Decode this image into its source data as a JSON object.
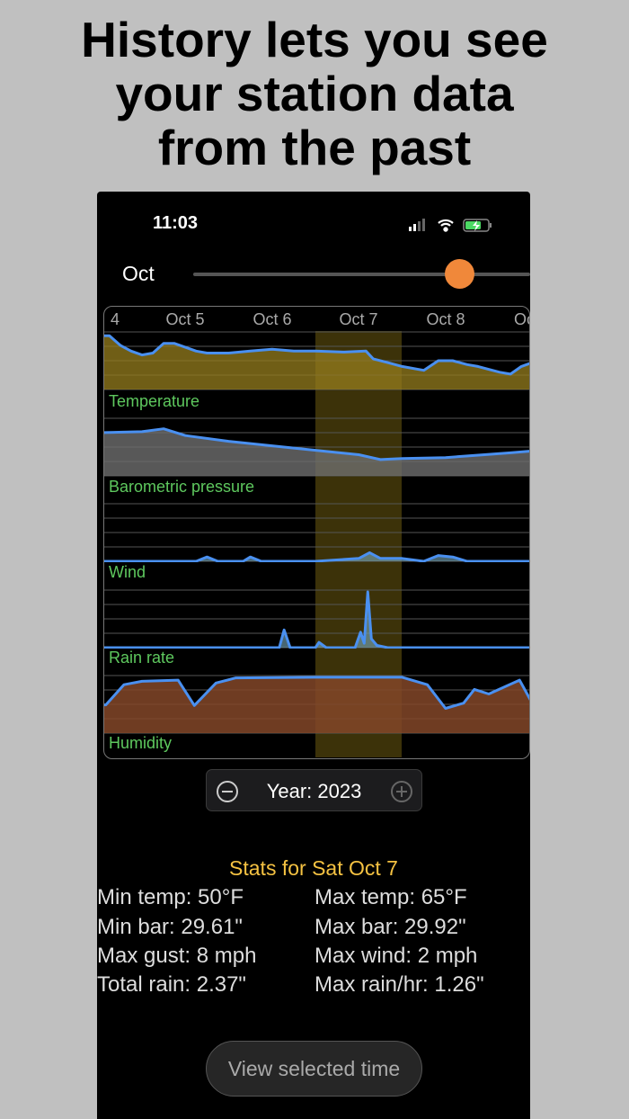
{
  "headline": [
    "History lets you see",
    "your station data",
    "from the past"
  ],
  "status": {
    "time": "11:03",
    "icons": [
      "cellular-signal-icon",
      "wifi-icon",
      "battery-charging-icon"
    ]
  },
  "slider": {
    "label": "Oct",
    "value_fraction": 0.79,
    "thumb_color": "#f0883a"
  },
  "chart": {
    "date_labels": [
      "4",
      "Oct 5",
      "Oct 6",
      "Oct 7",
      "Oct 8",
      "Oct"
    ],
    "selected_day": "Oct 7",
    "panels": [
      "Temperature",
      "Barometric pressure",
      "Wind",
      "Rain rate",
      "Humidity"
    ],
    "line_color": "#4a90f0",
    "label_color": "#5ec85e",
    "highlight_color": "#c8a41e"
  },
  "chart_data": [
    {
      "type": "area",
      "title": "Temperature",
      "ylim": [
        40,
        70
      ],
      "x": [
        "Oct 4 12:00",
        "Oct 4 15:00",
        "Oct 4 18:00",
        "Oct 4 21:00",
        "Oct 5 00:00",
        "Oct 5 03:00",
        "Oct 5 06:00",
        "Oct 5 09:00",
        "Oct 5 12:00",
        "Oct 5 15:00",
        "Oct 5 18:00",
        "Oct 6 00:00",
        "Oct 6 06:00",
        "Oct 6 12:00",
        "Oct 6 18:00",
        "Oct 7 00:00",
        "Oct 7 08:00",
        "Oct 7 14:00",
        "Oct 7 16:00",
        "Oct 7 20:00",
        "Oct 8 00:00",
        "Oct 8 06:00",
        "Oct 8 10:00",
        "Oct 8 14:00",
        "Oct 8 18:00",
        "Oct 8 21:00",
        "Oct 9 03:00",
        "Oct 9 06:00",
        "Oct 9 09:00",
        "Oct 9 12:00"
      ],
      "values": [
        68,
        68,
        63,
        60,
        58,
        59,
        64,
        64,
        62,
        60,
        59,
        59,
        60,
        61,
        60,
        60,
        59.5,
        60,
        56,
        54,
        52,
        50,
        55,
        55,
        53,
        52,
        49,
        48,
        52,
        54
      ]
    },
    {
      "type": "area",
      "title": "Barometric pressure",
      "ylim": [
        29.5,
        30.1
      ],
      "x": [
        "Oct 4 12:00",
        "Oct 5 00:00",
        "Oct 5 06:00",
        "Oct 5 12:00",
        "Oct 6 00:00",
        "Oct 6 18:00",
        "Oct 7 12:00",
        "Oct 7 18:00",
        "Oct 8 00:00",
        "Oct 8 12:00",
        "Oct 9 06:00",
        "Oct 9 12:00"
      ],
      "values": [
        29.95,
        29.96,
        29.99,
        29.92,
        29.86,
        29.79,
        29.72,
        29.67,
        29.68,
        29.69,
        29.74,
        29.76
      ]
    },
    {
      "type": "area",
      "title": "Wind",
      "ylim": [
        0,
        20
      ],
      "x": [
        "Oct 4 12:00",
        "Oct 5 15:00",
        "Oct 5 18:00",
        "Oct 5 21:00",
        "Oct 6 04:00",
        "Oct 6 06:00",
        "Oct 6 09:00",
        "Oct 7 00:00",
        "Oct 7 12:00",
        "Oct 7 15:00",
        "Oct 7 18:00",
        "Oct 8 00:00",
        "Oct 8 06:00",
        "Oct 8 10:00",
        "Oct 8 14:00",
        "Oct 8 18:00",
        "Oct 9 12:00"
      ],
      "values": [
        0,
        0,
        1.5,
        0,
        0,
        1.5,
        0,
        0,
        1,
        3,
        1,
        1,
        0,
        2,
        1.5,
        0,
        0
      ]
    },
    {
      "type": "area",
      "title": "Rain rate",
      "ylim": [
        0,
        1.3
      ],
      "x": [
        "Oct 4 12:00",
        "Oct 6 14:00",
        "Oct 6 15:20",
        "Oct 6 17:00",
        "Oct 7 00:00",
        "Oct 7 01:00",
        "Oct 7 03:00",
        "Oct 7 11:00",
        "Oct 7 12:30",
        "Oct 7 13:30",
        "Oct 7 14:30",
        "Oct 7 15:30",
        "Oct 7 17:00",
        "Oct 7 20:00",
        "Oct 9 12:00"
      ],
      "values": [
        0,
        0,
        0.4,
        0,
        0,
        0.12,
        0,
        0,
        0.35,
        0.1,
        1.26,
        0.2,
        0.05,
        0,
        0
      ]
    },
    {
      "type": "area",
      "title": "Humidity",
      "ylim": [
        0,
        100
      ],
      "x": [
        "Oct 4 12:00",
        "Oct 4 14:00",
        "Oct 4 19:00",
        "Oct 5 00:00",
        "Oct 5 10:00",
        "Oct 5 14:30",
        "Oct 5 20:30",
        "Oct 6 02:00",
        "Oct 7 00:00",
        "Oct 8 00:00",
        "Oct 8 07:00",
        "Oct 8 12:00",
        "Oct 8 17:00",
        "Oct 8 20:00",
        "Oct 9 00:00",
        "Oct 9 08:30",
        "Oct 9 12:00"
      ],
      "values": [
        49,
        49,
        84,
        90,
        92,
        48,
        87,
        96,
        97,
        97,
        84,
        43,
        52,
        76,
        68,
        92,
        52
      ]
    }
  ],
  "year_stepper": {
    "label": "Year: 2023",
    "minus_icon": "minus-circle-icon",
    "plus_icon": "plus-circle-icon"
  },
  "stats": {
    "title": "Stats for Sat Oct 7",
    "left": [
      "Min temp: 50°F",
      "Min bar: 29.61\"",
      "Max gust: 8 mph",
      "Total rain: 2.37\""
    ],
    "right": [
      "Max temp: 65°F",
      "Max bar: 29.92\"",
      "Max wind: 2 mph",
      "Max rain/hr: 1.26\""
    ]
  },
  "view_button": "View selected time"
}
